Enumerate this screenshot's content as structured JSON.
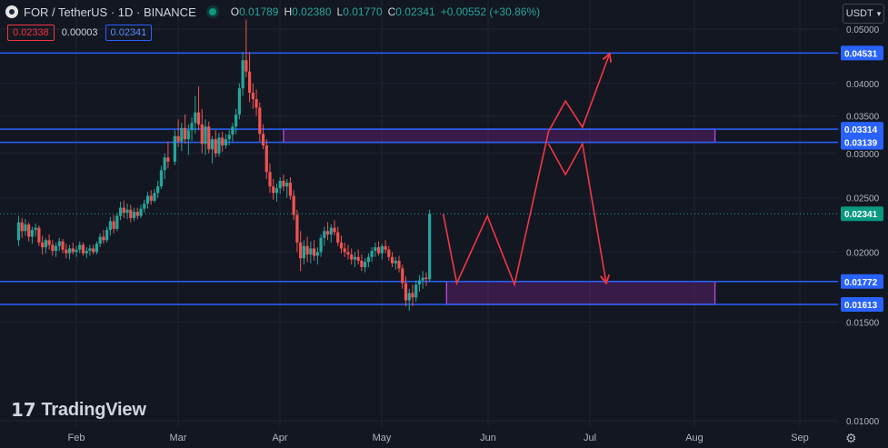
{
  "header": {
    "symbol_title": "FOR / TetherUS · 1D · BINANCE",
    "open_label": "O",
    "open_value": "0.01789",
    "high_label": "H",
    "high_value": "0.02380",
    "low_label": "L",
    "low_value": "0.01770",
    "close_label": "C",
    "close_value": "0.02341",
    "change_value": "+0.00552 (+30.86%)"
  },
  "trade": {
    "sell_price": "0.02338",
    "spread": "0.00003",
    "buy_price": "0.02341"
  },
  "currency_selector": {
    "label": "USDT",
    "icon": "chevron-down-icon"
  },
  "branding": {
    "logo_text": "TradingView"
  },
  "colors": {
    "background": "#131722",
    "up": "#26a69a",
    "down": "#ef5350",
    "level_line": "#2962ff",
    "zone": "#9c27b0",
    "projection": "#f23645"
  },
  "chart_data": {
    "type": "candlestick",
    "symbol": "FOR / TetherUS",
    "interval": "1D",
    "exchange": "BINANCE",
    "x_ticks": [
      "Feb",
      "Mar",
      "Apr",
      "May",
      "Jun",
      "Jul",
      "Aug",
      "Sep"
    ],
    "y_ticks": [
      "0.01000",
      "0.01500",
      "0.02000",
      "0.02500",
      "0.03000",
      "0.03500",
      "0.04000",
      "0.05000"
    ],
    "ylim": [
      0.01,
      0.052
    ],
    "y_scale": "log",
    "grid": true,
    "last_price": "0.02341",
    "horizontal_levels": [
      "0.04531",
      "0.03314",
      "0.03139",
      "0.01772",
      "0.01613"
    ],
    "zones": [
      {
        "top": 0.03314,
        "bottom": 0.03139,
        "from": "Apr 02",
        "to": "Aug 07"
      },
      {
        "top": 0.01772,
        "bottom": 0.01613,
        "from": "May 20",
        "to": "Aug 07"
      }
    ],
    "projection_path": [
      {
        "date": "May 19",
        "price": 0.0234
      },
      {
        "date": "May 23",
        "price": 0.0176
      },
      {
        "date": "Jun 01",
        "price": 0.0232
      },
      {
        "date": "Jun 09",
        "price": 0.0175
      },
      {
        "date": "Jun 19",
        "price": 0.0328
      },
      {
        "date": "Jun 24",
        "price": 0.0372
      },
      {
        "date": "Jun 29",
        "price": 0.0334
      },
      {
        "date": "Jul 07",
        "price": 0.0452
      }
    ],
    "projection_path_2": [
      {
        "date": "Jun 19",
        "price": 0.0312
      },
      {
        "date": "Jun 24",
        "price": 0.0275
      },
      {
        "date": "Jun 29",
        "price": 0.0312
      },
      {
        "date": "Jul 06",
        "price": 0.0176
      }
    ],
    "candles": [
      [
        "Jan 15",
        0.021,
        0.0232,
        0.0205,
        0.0226
      ],
      [
        "Jan 16",
        0.0226,
        0.023,
        0.0212,
        0.0218
      ],
      [
        "Jan 17",
        0.0218,
        0.0229,
        0.0214,
        0.0224
      ],
      [
        "Jan 18",
        0.0224,
        0.0226,
        0.0209,
        0.0213
      ],
      [
        "Jan 19",
        0.0213,
        0.0222,
        0.0207,
        0.0219
      ],
      [
        "Jan 20",
        0.0219,
        0.0225,
        0.0213,
        0.0221
      ],
      [
        "Jan 21",
        0.0221,
        0.0223,
        0.0205,
        0.0208
      ],
      [
        "Jan 22",
        0.0208,
        0.0214,
        0.0198,
        0.0204
      ],
      [
        "Jan 23",
        0.0204,
        0.0212,
        0.0199,
        0.021
      ],
      [
        "Jan 24",
        0.021,
        0.0215,
        0.0202,
        0.0206
      ],
      [
        "Jan 25",
        0.0206,
        0.021,
        0.0197,
        0.0201
      ],
      [
        "Jan 26",
        0.0201,
        0.0208,
        0.0196,
        0.0205
      ],
      [
        "Jan 27",
        0.0205,
        0.0212,
        0.0201,
        0.0209
      ],
      [
        "Jan 28",
        0.0209,
        0.0211,
        0.0199,
        0.0202
      ],
      [
        "Jan 29",
        0.0202,
        0.0207,
        0.0195,
        0.0199
      ],
      [
        "Jan 30",
        0.0199,
        0.0206,
        0.0194,
        0.0203
      ],
      [
        "Jan 31",
        0.0203,
        0.0208,
        0.0198,
        0.02
      ],
      [
        "Feb 01",
        0.02,
        0.0205,
        0.0196,
        0.0202
      ],
      [
        "Feb 02",
        0.0202,
        0.0209,
        0.0199,
        0.0206
      ],
      [
        "Feb 03",
        0.0206,
        0.0208,
        0.0197,
        0.0199
      ],
      [
        "Feb 04",
        0.0199,
        0.0204,
        0.0195,
        0.0201
      ],
      [
        "Feb 05",
        0.0201,
        0.0206,
        0.0197,
        0.0203
      ],
      [
        "Feb 06",
        0.0203,
        0.0206,
        0.0198,
        0.02
      ],
      [
        "Feb 07",
        0.02,
        0.0209,
        0.0198,
        0.0207
      ],
      [
        "Feb 08",
        0.0207,
        0.0216,
        0.0204,
        0.0213
      ],
      [
        "Feb 09",
        0.0213,
        0.0219,
        0.0207,
        0.021
      ],
      [
        "Feb 10",
        0.021,
        0.0222,
        0.0208,
        0.0219
      ],
      [
        "Feb 11",
        0.0219,
        0.0231,
        0.0214,
        0.0227
      ],
      [
        "Feb 12",
        0.0227,
        0.0233,
        0.0216,
        0.022
      ],
      [
        "Feb 13",
        0.022,
        0.0235,
        0.0218,
        0.0232
      ],
      [
        "Feb 14",
        0.0232,
        0.0246,
        0.0228,
        0.024
      ],
      [
        "Feb 15",
        0.024,
        0.0247,
        0.023,
        0.0235
      ],
      [
        "Feb 16",
        0.0235,
        0.0244,
        0.0229,
        0.0238
      ],
      [
        "Feb 17",
        0.0238,
        0.0243,
        0.0226,
        0.023
      ],
      [
        "Feb 18",
        0.023,
        0.024,
        0.0227,
        0.0236
      ],
      [
        "Feb 19",
        0.0236,
        0.024,
        0.0229,
        0.0232
      ],
      [
        "Feb 20",
        0.0232,
        0.0243,
        0.023,
        0.0239
      ],
      [
        "Feb 21",
        0.0239,
        0.0248,
        0.0235,
        0.0244
      ],
      [
        "Feb 22",
        0.0244,
        0.0256,
        0.0239,
        0.0252
      ],
      [
        "Feb 23",
        0.0252,
        0.0258,
        0.0243,
        0.0247
      ],
      [
        "Feb 24",
        0.0247,
        0.0259,
        0.0245,
        0.0255
      ],
      [
        "Feb 25",
        0.0255,
        0.0268,
        0.025,
        0.0262
      ],
      [
        "Feb 26",
        0.0262,
        0.0285,
        0.0259,
        0.028
      ],
      [
        "Feb 27",
        0.028,
        0.03,
        0.027,
        0.0295
      ],
      [
        "Feb 28",
        0.0295,
        0.0315,
        0.0282,
        0.029
      ],
      [
        "Mar 01",
        0.029,
        0.033,
        0.0286,
        0.0322
      ],
      [
        "Mar 02",
        0.0322,
        0.0345,
        0.0308,
        0.0315
      ],
      [
        "Mar 03",
        0.0315,
        0.034,
        0.0303,
        0.0333
      ],
      [
        "Mar 04",
        0.0333,
        0.0352,
        0.0312,
        0.0318
      ],
      [
        "Mar 05",
        0.0318,
        0.0338,
        0.0298,
        0.033
      ],
      [
        "Mar 06",
        0.033,
        0.0348,
        0.0316,
        0.034
      ],
      [
        "Mar 07",
        0.034,
        0.038,
        0.0325,
        0.0355
      ],
      [
        "Mar 08",
        0.0355,
        0.0395,
        0.033,
        0.0338
      ],
      [
        "Mar 09",
        0.0338,
        0.036,
        0.03,
        0.0312
      ],
      [
        "Mar 10",
        0.0312,
        0.0345,
        0.0298,
        0.0335
      ],
      [
        "Mar 11",
        0.0335,
        0.0342,
        0.03,
        0.0305
      ],
      [
        "Mar 12",
        0.0305,
        0.0322,
        0.0288,
        0.0318
      ],
      [
        "Mar 13",
        0.0318,
        0.033,
        0.0295,
        0.03
      ],
      [
        "Mar 14",
        0.03,
        0.0326,
        0.0296,
        0.032
      ],
      [
        "Mar 15",
        0.032,
        0.0328,
        0.0302,
        0.031
      ],
      [
        "Mar 16",
        0.031,
        0.0325,
        0.0306,
        0.0318
      ],
      [
        "Mar 17",
        0.0318,
        0.033,
        0.031,
        0.0324
      ],
      [
        "Mar 18",
        0.0324,
        0.034,
        0.0315,
        0.0335
      ],
      [
        "Mar 19",
        0.0335,
        0.036,
        0.0325,
        0.0352
      ],
      [
        "Mar 20",
        0.0352,
        0.04,
        0.0345,
        0.0392
      ],
      [
        "Mar 21",
        0.0392,
        0.0455,
        0.038,
        0.044
      ],
      [
        "Mar 22",
        0.044,
        0.052,
        0.041,
        0.042
      ],
      [
        "Mar 23",
        0.042,
        0.0455,
        0.037,
        0.0385
      ],
      [
        "Mar 24",
        0.0385,
        0.04,
        0.036,
        0.0375
      ],
      [
        "Mar 25",
        0.0375,
        0.039,
        0.035,
        0.0362
      ],
      [
        "Mar 26",
        0.0362,
        0.037,
        0.0315,
        0.0325
      ],
      [
        "Mar 27",
        0.0325,
        0.0338,
        0.0305,
        0.031
      ],
      [
        "Mar 28",
        0.031,
        0.0318,
        0.027,
        0.0278
      ],
      [
        "Mar 29",
        0.0278,
        0.0288,
        0.0255,
        0.0262
      ],
      [
        "Mar 30",
        0.0262,
        0.027,
        0.0248,
        0.0255
      ],
      [
        "Mar 31",
        0.0255,
        0.0265,
        0.0246,
        0.026
      ],
      [
        "Apr 01",
        0.026,
        0.0272,
        0.0254,
        0.0268
      ],
      [
        "Apr 02",
        0.0268,
        0.0275,
        0.0257,
        0.0262
      ],
      [
        "Apr 03",
        0.0262,
        0.027,
        0.025,
        0.0266
      ],
      [
        "Apr 04",
        0.0266,
        0.0272,
        0.0248,
        0.0252
      ],
      [
        "Apr 05",
        0.0252,
        0.0258,
        0.0228,
        0.0233
      ],
      [
        "Apr 06",
        0.0233,
        0.0238,
        0.02,
        0.0208
      ],
      [
        "Apr 07",
        0.0208,
        0.0218,
        0.0185,
        0.0195
      ],
      [
        "Apr 08",
        0.0195,
        0.021,
        0.019,
        0.0205
      ],
      [
        "Apr 09",
        0.0205,
        0.0213,
        0.0192,
        0.0198
      ],
      [
        "Apr 10",
        0.0198,
        0.0209,
        0.0191,
        0.0203
      ],
      [
        "Apr 11",
        0.0203,
        0.021,
        0.0193,
        0.0197
      ],
      [
        "Apr 12",
        0.0197,
        0.0204,
        0.019,
        0.02
      ],
      [
        "Apr 13",
        0.02,
        0.0215,
        0.0196,
        0.0212
      ],
      [
        "Apr 14",
        0.0212,
        0.0222,
        0.0205,
        0.0218
      ],
      [
        "Apr 15",
        0.0218,
        0.0226,
        0.021,
        0.0215
      ],
      [
        "Apr 16",
        0.0215,
        0.0224,
        0.0208,
        0.0221
      ],
      [
        "Apr 17",
        0.0221,
        0.0228,
        0.0214,
        0.0217
      ],
      [
        "Apr 18",
        0.0217,
        0.0222,
        0.0205,
        0.0208
      ],
      [
        "Apr 19",
        0.0208,
        0.0214,
        0.0199,
        0.0203
      ],
      [
        "Apr 20",
        0.0203,
        0.0208,
        0.0196,
        0.02
      ],
      [
        "Apr 21",
        0.02,
        0.0206,
        0.0194,
        0.0198
      ],
      [
        "Apr 22",
        0.0198,
        0.0203,
        0.019,
        0.0194
      ],
      [
        "Apr 23",
        0.0194,
        0.02,
        0.0188,
        0.0196
      ],
      [
        "Apr 24",
        0.0196,
        0.0202,
        0.019,
        0.0193
      ],
      [
        "Apr 25",
        0.0193,
        0.0198,
        0.0185,
        0.0188
      ],
      [
        "Apr 26",
        0.0188,
        0.0195,
        0.0184,
        0.0192
      ],
      [
        "Apr 27",
        0.0192,
        0.0199,
        0.0188,
        0.0196
      ],
      [
        "Apr 28",
        0.0196,
        0.0204,
        0.0192,
        0.0201
      ],
      [
        "Apr 29",
        0.0201,
        0.0208,
        0.0196,
        0.0204
      ],
      [
        "Apr 30",
        0.0204,
        0.0209,
        0.0197,
        0.0199
      ],
      [
        "May 01",
        0.0199,
        0.0207,
        0.0194,
        0.0205
      ],
      [
        "May 02",
        0.0205,
        0.021,
        0.0199,
        0.0202
      ],
      [
        "May 03",
        0.0202,
        0.0205,
        0.0193,
        0.0196
      ],
      [
        "May 04",
        0.0196,
        0.02,
        0.0188,
        0.0191
      ],
      [
        "May 05",
        0.0191,
        0.0196,
        0.0186,
        0.0193
      ],
      [
        "May 06",
        0.0193,
        0.0197,
        0.0184,
        0.0187
      ],
      [
        "May 07",
        0.0187,
        0.019,
        0.0172,
        0.0176
      ],
      [
        "May 08",
        0.0176,
        0.0181,
        0.016,
        0.0164
      ],
      [
        "May 09",
        0.0164,
        0.0172,
        0.0157,
        0.0169
      ],
      [
        "May 10",
        0.0169,
        0.0175,
        0.016,
        0.0166
      ],
      [
        "May 11",
        0.0166,
        0.0178,
        0.0163,
        0.0175
      ],
      [
        "May 12",
        0.0175,
        0.0182,
        0.017,
        0.0178
      ],
      [
        "May 13",
        0.0178,
        0.0185,
        0.0172,
        0.018
      ],
      [
        "May 14",
        0.018,
        0.0184,
        0.0174,
        0.0179
      ],
      [
        "May 15",
        0.01789,
        0.0238,
        0.0177,
        0.02341
      ]
    ]
  }
}
